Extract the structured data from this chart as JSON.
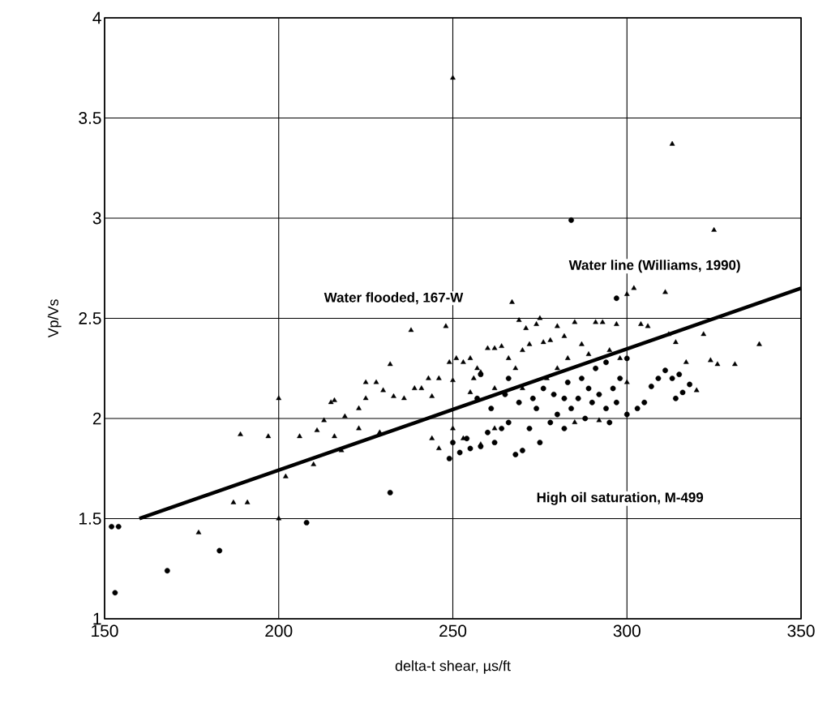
{
  "chart_data": {
    "type": "scatter",
    "xlabel": "delta-t shear, µs/ft",
    "ylabel": "Vp/Vs",
    "xlim": [
      150,
      350
    ],
    "ylim": [
      1,
      4
    ],
    "xticks": [
      150,
      200,
      250,
      300,
      350
    ],
    "yticks": [
      1,
      1.5,
      2,
      2.5,
      3,
      3.5,
      4
    ],
    "grid": true,
    "series": [
      {
        "name": "Water flooded, 167-W",
        "marker": "triangle",
        "color": "#000000",
        "x": [
          250,
          313,
          325,
          200,
          189,
          197,
          206,
          211,
          216,
          223,
          200,
          177,
          187,
          191,
          202,
          210,
          218,
          229,
          213,
          219,
          215,
          216,
          223,
          225,
          225,
          228,
          230,
          232,
          233,
          236,
          238,
          239,
          241,
          243,
          244,
          246,
          248,
          249,
          250,
          251,
          253,
          255,
          256,
          257,
          258,
          260,
          262,
          264,
          266,
          267,
          269,
          270,
          271,
          272,
          274,
          275,
          276,
          278,
          280,
          282,
          283,
          285,
          287,
          289,
          291,
          293,
          295,
          297,
          300,
          302,
          304,
          306,
          311,
          312,
          314,
          317,
          320,
          322,
          324,
          326,
          331,
          338,
          244,
          246,
          250,
          253,
          258,
          262,
          268,
          277,
          285,
          292,
          255,
          262,
          270,
          280,
          298,
          300
        ],
        "values": [
          3.7,
          3.37,
          2.94,
          2.1,
          1.92,
          1.91,
          1.91,
          1.94,
          1.91,
          1.95,
          1.5,
          1.43,
          1.58,
          1.58,
          1.71,
          1.77,
          1.84,
          1.93,
          1.99,
          2.01,
          2.08,
          2.09,
          2.05,
          2.1,
          2.18,
          2.18,
          2.14,
          2.27,
          2.11,
          2.1,
          2.44,
          2.15,
          2.15,
          2.2,
          2.11,
          2.2,
          2.46,
          2.28,
          2.19,
          2.3,
          2.28,
          2.3,
          2.2,
          2.25,
          2.23,
          2.35,
          2.35,
          2.36,
          2.3,
          2.58,
          2.49,
          2.34,
          2.45,
          2.37,
          2.47,
          2.5,
          2.38,
          2.39,
          2.46,
          2.41,
          2.3,
          2.48,
          2.37,
          2.32,
          2.48,
          2.48,
          2.34,
          2.47,
          2.62,
          2.65,
          2.47,
          2.46,
          2.63,
          2.42,
          2.38,
          2.28,
          2.14,
          2.42,
          2.29,
          2.27,
          2.27,
          2.37,
          1.9,
          1.85,
          1.95,
          1.9,
          1.87,
          1.95,
          2.25,
          2.2,
          1.98,
          1.99,
          2.13,
          2.15,
          2.15,
          2.25,
          2.3,
          2.18
        ]
      },
      {
        "name": "High oil saturation, M-499",
        "marker": "circle",
        "color": "#000000",
        "x": [
          152,
          154,
          153,
          168,
          183,
          208,
          232,
          284,
          297,
          300,
          249,
          250,
          252,
          254,
          255,
          258,
          260,
          262,
          264,
          266,
          268,
          270,
          272,
          275,
          278,
          280,
          282,
          284,
          286,
          288,
          290,
          292,
          294,
          295,
          296,
          298,
          300,
          303,
          305,
          307,
          309,
          311,
          313,
          315,
          316,
          318,
          314,
          257,
          261,
          265,
          269,
          273,
          276,
          279,
          283,
          287,
          291,
          294,
          258,
          266,
          274,
          282,
          289,
          297
        ],
        "values": [
          1.46,
          1.46,
          1.13,
          1.24,
          1.34,
          1.48,
          1.63,
          2.99,
          2.6,
          2.3,
          1.8,
          1.88,
          1.83,
          1.9,
          1.85,
          1.86,
          1.93,
          1.88,
          1.95,
          1.98,
          1.82,
          1.84,
          1.95,
          1.88,
          1.98,
          2.02,
          1.95,
          2.05,
          2.1,
          2.0,
          2.08,
          2.12,
          2.05,
          1.98,
          2.15,
          2.2,
          2.02,
          2.05,
          2.08,
          2.16,
          2.2,
          2.24,
          2.2,
          2.22,
          2.13,
          2.17,
          2.1,
          2.1,
          2.05,
          2.12,
          2.08,
          2.1,
          2.15,
          2.12,
          2.18,
          2.2,
          2.25,
          2.28,
          2.22,
          2.2,
          2.05,
          2.1,
          2.15,
          2.08
        ]
      },
      {
        "name": "Water line (Williams, 1990)",
        "type": "line",
        "marker": "none",
        "line_style": "solid",
        "color": "#000000",
        "x": [
          160,
          350
        ],
        "values": [
          1.5,
          2.65
        ]
      }
    ]
  }
}
